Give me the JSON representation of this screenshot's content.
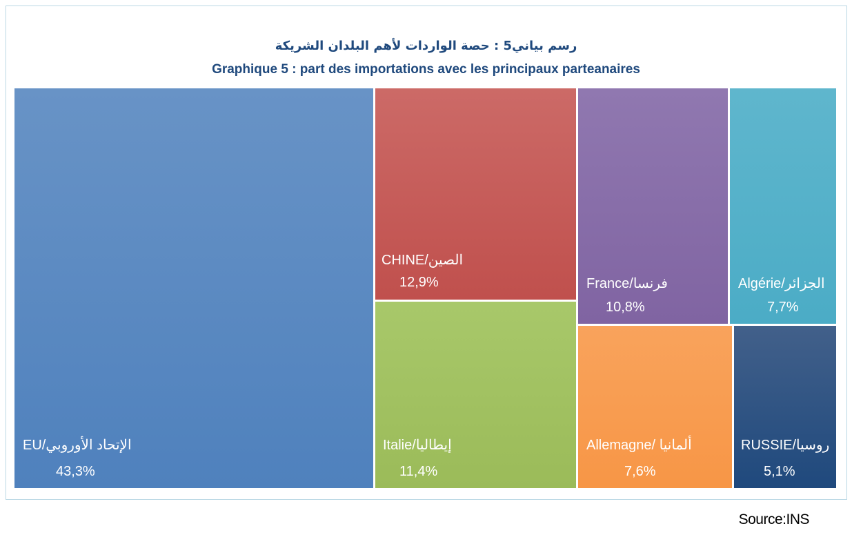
{
  "title_ar": "رسم بياني5 :  حصة الواردات لأهم البلدان الشريكة",
  "title_fr": "Graphique 5 : part des importations avec les principaux parteanaires",
  "source": "Source:INS",
  "chart_data": {
    "type": "treemap",
    "items": [
      {
        "label": "EU/الإتحاد الأوروبي",
        "value": 43.3,
        "display": "43,3%",
        "color": "#4f81bd",
        "color_top": "#6893c6"
      },
      {
        "label": "CHINE/الصين",
        "value": 12.9,
        "display": "12,9%",
        "color": "#c0504d",
        "color_top": "#cc6a67"
      },
      {
        "label": "Italie/إيطاليا",
        "value": 11.4,
        "display": "11,4%",
        "color": "#9bbb59",
        "color_top": "#a8c86a"
      },
      {
        "label": "France/فرنسا",
        "value": 10.8,
        "display": "10,8%",
        "color": "#8064a2",
        "color_top": "#9078b0"
      },
      {
        "label": "Allemagne/ ألمانيا",
        "value": 7.6,
        "display": "7,6%",
        "color": "#f79646",
        "color_top": "#f9a35c"
      },
      {
        "label": "Algérie/الجزائر",
        "value": 7.7,
        "display": "7,7%",
        "color": "#4bacc6",
        "color_top": "#5fb6cd"
      },
      {
        "label": "RUSSIE/روسيا",
        "value": 5.1,
        "display": "5,1%",
        "color": "#1f497d",
        "color_top": "#42608a"
      }
    ]
  }
}
